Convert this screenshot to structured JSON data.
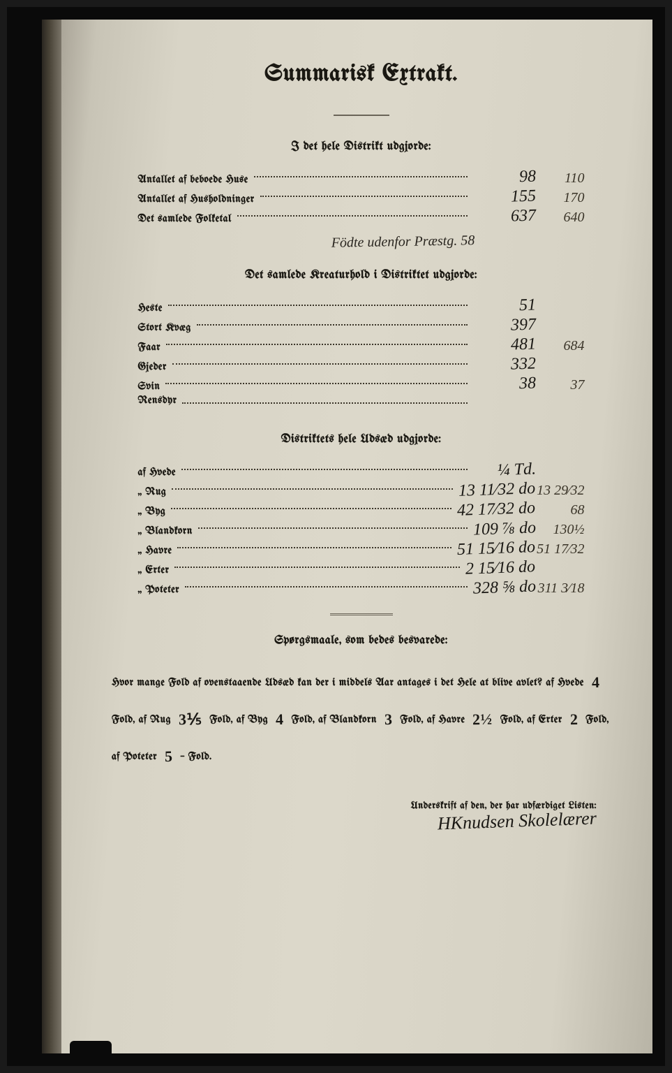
{
  "title": "Summarisk Extrakt.",
  "section1": {
    "heading": "I det hele Distrikt udgjorde:",
    "rows": [
      {
        "label": "Antallet af beboede Huse",
        "v1": "98",
        "v2": "110"
      },
      {
        "label": "Antallet af Husholdninger",
        "v1": "155",
        "v2": "170"
      },
      {
        "label": "Det samlede Folketal",
        "v1": "637",
        "v2": "640"
      }
    ],
    "annotation": "Födte udenfor Præstg. 58"
  },
  "section2": {
    "heading": "Det samlede Kreaturhold i Distriktet udgjorde:",
    "rows": [
      {
        "label": "Heste",
        "v1": "51",
        "v2": ""
      },
      {
        "label": "Stort Kvæg",
        "v1": "397",
        "v2": ""
      },
      {
        "label": "Faar",
        "v1": "481",
        "v2": "684"
      },
      {
        "label": "Gjeder",
        "v1": "332",
        "v2": ""
      },
      {
        "label": "Svin",
        "v1": "38",
        "v2": "37"
      },
      {
        "label": "Rensdyr",
        "v1": "",
        "v2": ""
      }
    ]
  },
  "section3": {
    "heading": "Distriktets hele Udsæd udgjorde:",
    "rows": [
      {
        "label": "af Hvede",
        "v1": "¼ Td.",
        "v2": ""
      },
      {
        "label": "Rug",
        "v1": "13 11⁄32 do",
        "v2": "13 29⁄32"
      },
      {
        "label": "Byg",
        "v1": "42 17⁄32 do",
        "v2": "68"
      },
      {
        "label": "Blandkorn",
        "v1": "109 ⅞ do",
        "v2": "130½"
      },
      {
        "label": "Havre",
        "v1": "51 15⁄16 do",
        "v2": "51 17⁄32"
      },
      {
        "label": "Erter",
        "v1": "2 15⁄16 do",
        "v2": ""
      },
      {
        "label": "Poteter",
        "v1": "328 ⅝ do",
        "v2": "311 3⁄18"
      }
    ]
  },
  "section4": {
    "heading": "Spørgsmaale, som bedes besvarede:",
    "question_lead": "Hvor mange Fold af ovenstaaende Udsæd kan der i middels Aar antages i det Hele at blive avlet?",
    "fields": [
      {
        "label": "af Hvede",
        "value": "4",
        "suffix": "Fold,"
      },
      {
        "label": "af Rug",
        "value": "3⅕",
        "suffix": "Fold,"
      },
      {
        "label": "af Byg",
        "value": "4",
        "suffix": "Fold,"
      },
      {
        "label": "af Blandkorn",
        "value": "3",
        "suffix": "Fold,"
      },
      {
        "label": "af Havre",
        "value": "2½",
        "suffix": "Fold,"
      },
      {
        "label": "af Erter",
        "value": "2",
        "suffix": "Fold,"
      },
      {
        "label": "af Poteter",
        "value": "5",
        "suffix": "– Fold."
      }
    ]
  },
  "signature_label": "Underskrift af den, der har udfærdiget Listen:",
  "signature": "HKnudsen Skolelærer",
  "colors": {
    "paper": "#d8d4c6",
    "ink": "#1a1812",
    "hand_ink": "#1a1814",
    "frame": "#0a0a0a"
  },
  "typography": {
    "title_pt": 34,
    "section_pt": 17,
    "body_pt": 15,
    "hand_pt": 24
  }
}
